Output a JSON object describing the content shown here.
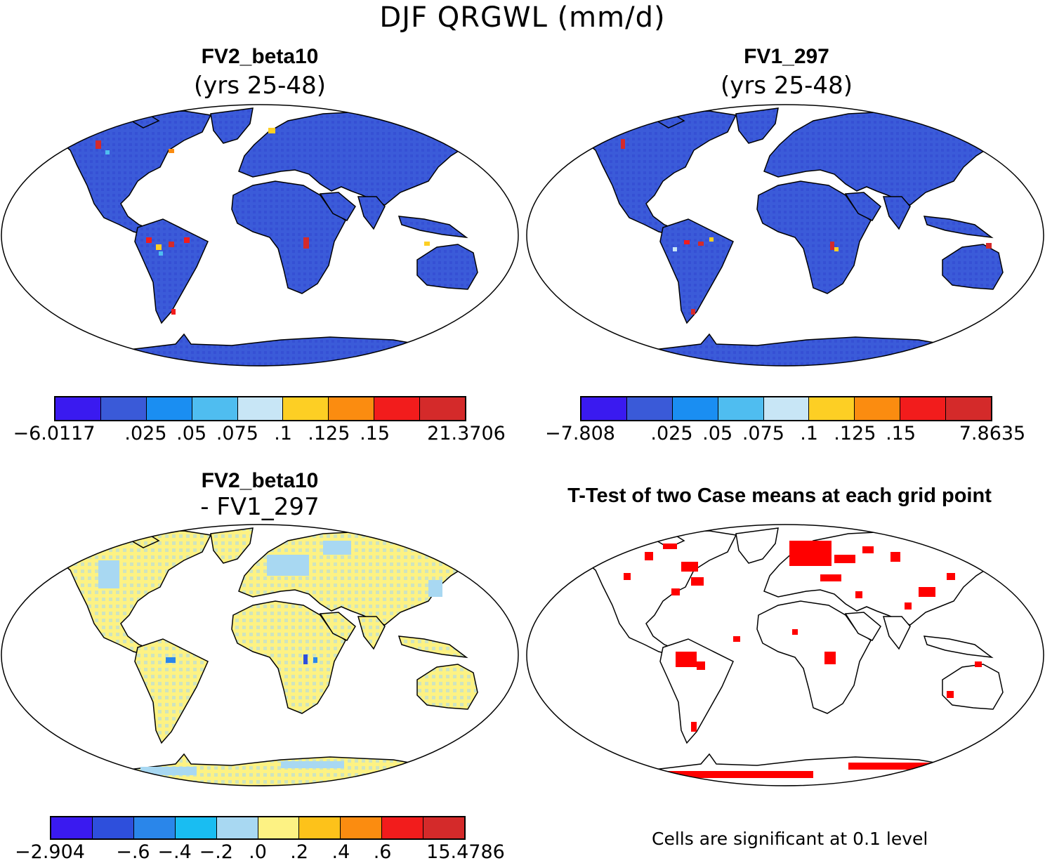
{
  "title": "DJF QRGWL (mm/d)",
  "panels": {
    "p1": {
      "title": "FV2_beta10",
      "subtitle": "(yrs 25-48)"
    },
    "p2": {
      "title": "FV1_297",
      "subtitle": "(yrs 25-48)"
    },
    "p3": {
      "title": "FV2_beta10",
      "subtitle": "- FV1_297"
    },
    "p4": {
      "title": "T-Test of two Case means at each grid point",
      "note": "Cells are significant at 0.1 level"
    }
  },
  "colorbars": {
    "cb1": {
      "colors": [
        "#3a1af0",
        "#3a5ad8",
        "#1a8ef2",
        "#4fbdf0",
        "#c8e6f6",
        "#fdcf24",
        "#fb8c10",
        "#f21c1c",
        "#d42a2a"
      ],
      "ticks": [
        "-6.0117",
        ".025",
        ".05",
        ".075",
        ".1",
        ".125",
        ".15",
        "21.3706"
      ]
    },
    "cb2": {
      "colors": [
        "#3a1af0",
        "#3a5ad8",
        "#1a8ef2",
        "#4fbdf0",
        "#c8e6f6",
        "#fdcf24",
        "#fb8c10",
        "#f21c1c",
        "#d42a2a"
      ],
      "ticks": [
        "-7.808",
        ".025",
        ".05",
        ".075",
        ".1",
        ".125",
        ".15",
        "7.8635"
      ]
    },
    "cb3": {
      "colors": [
        "#3a1af0",
        "#2e4fdc",
        "#2a86ea",
        "#19bdf2",
        "#a8d8f2",
        "#fdf283",
        "#fdc21a",
        "#fb8c10",
        "#f21c1c",
        "#d42a2a"
      ],
      "ticks": [
        "-2.904",
        "-.6",
        "-.4",
        "-.2",
        ".0",
        ".2",
        ".4",
        ".6",
        "15.4786"
      ]
    }
  },
  "map_colors": {
    "land_p1": "#3b5bd9",
    "land_p2": "#3b5bd9",
    "land_p3": "#fdf283",
    "land_p3_alt": "#a8d8f2",
    "sig_cells": "#ff0000",
    "ocean": "#ffffff"
  }
}
